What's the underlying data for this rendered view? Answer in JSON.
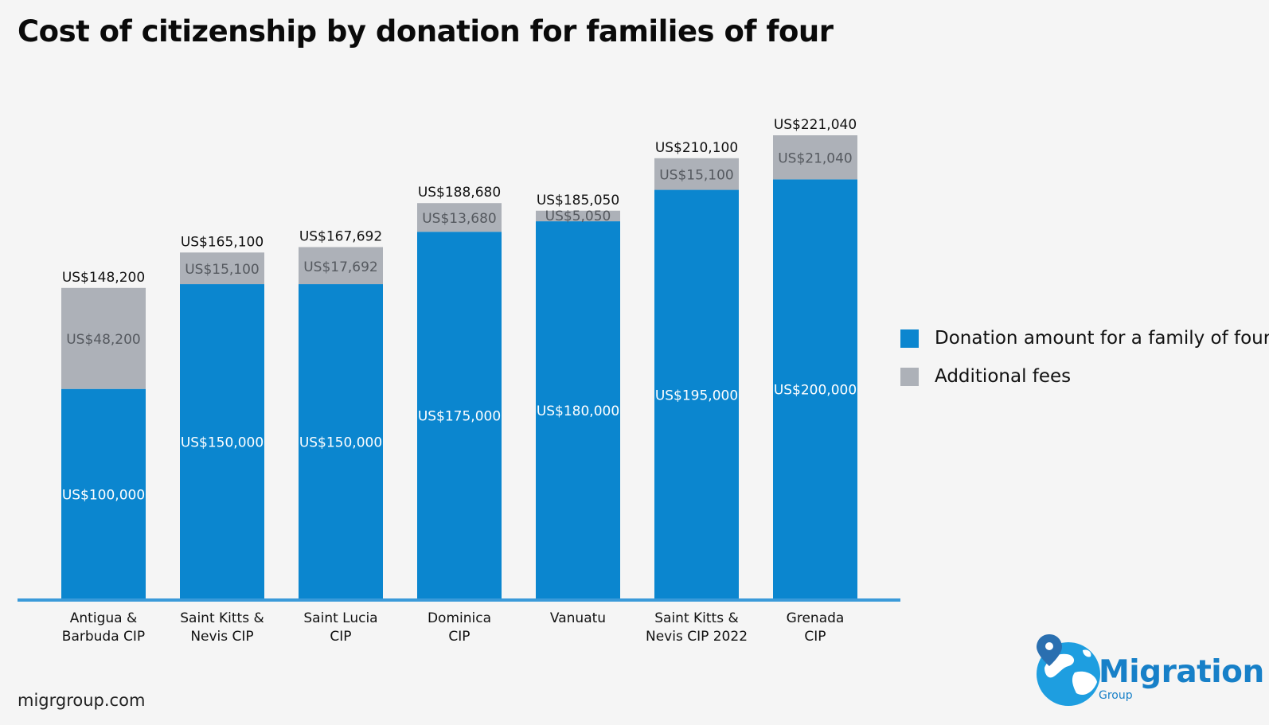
{
  "title": "Cost of citizenship by donation for families of four",
  "footer": "migrgroup.com",
  "colors": {
    "donation": "#0b86cf",
    "fees": "#adb1b8",
    "axis": "#3a9ad9",
    "logo": "#1780c8"
  },
  "logo": {
    "word": "Migration",
    "sub": "Group"
  },
  "chart_data": {
    "type": "bar",
    "stacked": true,
    "title": "Cost of citizenship by donation for families of four",
    "categories": [
      [
        "Antigua &",
        "Barbuda CIP"
      ],
      [
        "Saint Kitts &",
        "Nevis CIP"
      ],
      [
        "Saint Lucia",
        "CIP"
      ],
      [
        "Dominica",
        "CIP"
      ],
      [
        "Vanuatu"
      ],
      [
        "Saint Kitts &",
        "Nevis CIP 2022"
      ],
      [
        "Grenada",
        "CIP"
      ]
    ],
    "series": [
      {
        "name": "Donation amount for a family of four",
        "values": [
          100000,
          150000,
          150000,
          175000,
          180000,
          195000,
          200000
        ],
        "labels": [
          "US$100,000",
          "US$150,000",
          "US$150,000",
          "US$175,000",
          "US$180,000",
          "US$195,000",
          "US$200,000"
        ]
      },
      {
        "name": "Additional fees",
        "values": [
          48200,
          15100,
          17692,
          13680,
          5050,
          15100,
          21040
        ],
        "labels": [
          "US$48,200",
          "US$15,100",
          "US$17,692",
          "US$13,680",
          "US$5,050",
          "US$15,100",
          "US$21,040"
        ]
      }
    ],
    "totals": [
      "US$148,200",
      "US$165,100",
      "US$167,692",
      "US$188,680",
      "US$185,050",
      "US$210,100",
      "US$221,040"
    ],
    "ylim": [
      0,
      221040
    ],
    "legend": "right",
    "grid": false
  }
}
